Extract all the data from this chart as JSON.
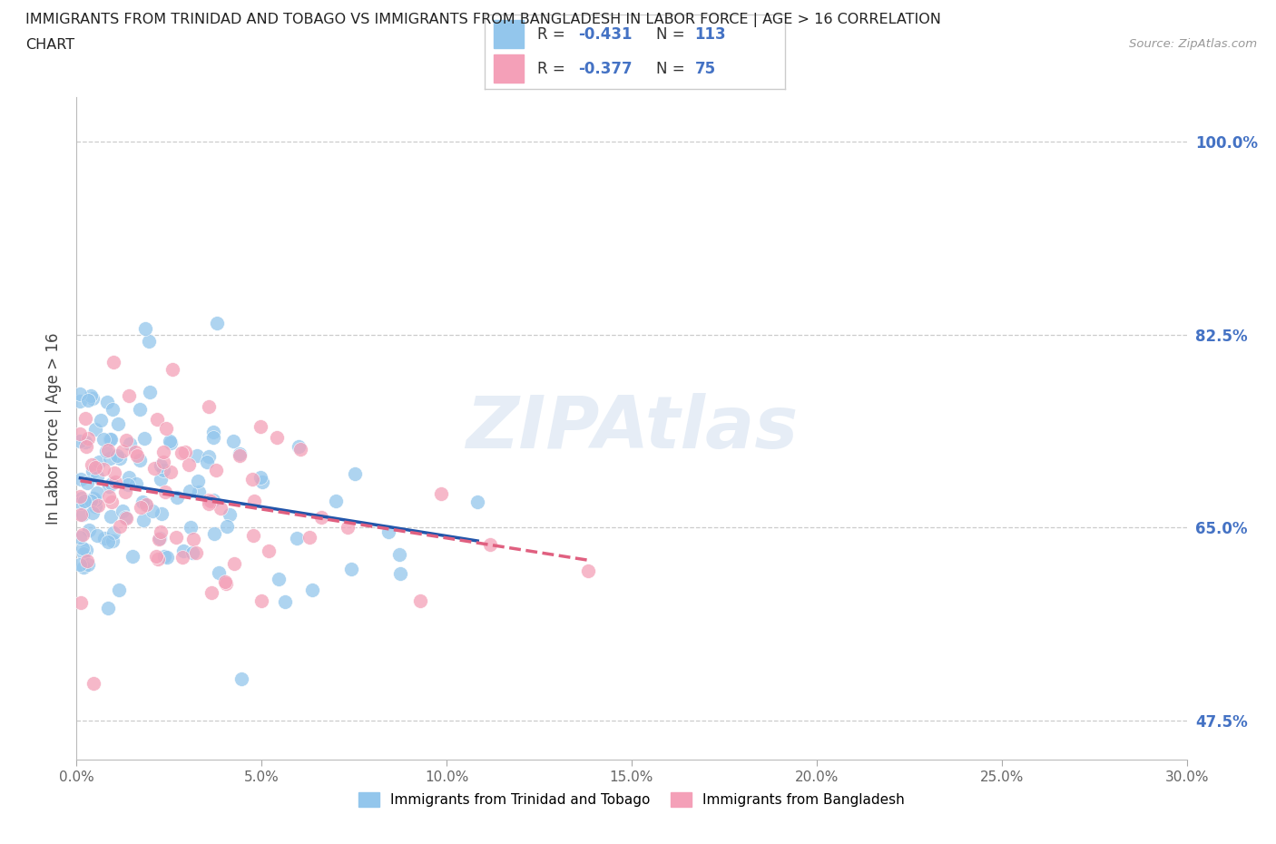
{
  "title_line1": "IMMIGRANTS FROM TRINIDAD AND TOBAGO VS IMMIGRANTS FROM BANGLADESH IN LABOR FORCE | AGE > 16 CORRELATION",
  "title_line2": "CHART",
  "source": "Source: ZipAtlas.com",
  "ylabel": "In Labor Force | Age > 16",
  "xlim": [
    0.0,
    0.3
  ],
  "ylim": [
    0.44,
    1.04
  ],
  "xtick_labels": [
    "0.0%",
    "5.0%",
    "10.0%",
    "15.0%",
    "20.0%",
    "25.0%",
    "30.0%"
  ],
  "xtick_vals": [
    0.0,
    0.05,
    0.1,
    0.15,
    0.2,
    0.25,
    0.3
  ],
  "ytick_labels_right": [
    "47.5%",
    "65.0%",
    "82.5%",
    "100.0%"
  ],
  "ytick_vals_right": [
    0.475,
    0.65,
    0.825,
    1.0
  ],
  "color_tt": "#93C6EC",
  "color_bd": "#F4A0B8",
  "line_color_tt": "#2255AA",
  "line_color_bd": "#E06080",
  "R_tt": -0.431,
  "N_tt": 113,
  "R_bd": -0.377,
  "N_bd": 75,
  "r_color": "#4472C4",
  "legend_label_tt": "Immigrants from Trinidad and Tobago",
  "legend_label_bd": "Immigrants from Bangladesh",
  "background_color": "#ffffff"
}
